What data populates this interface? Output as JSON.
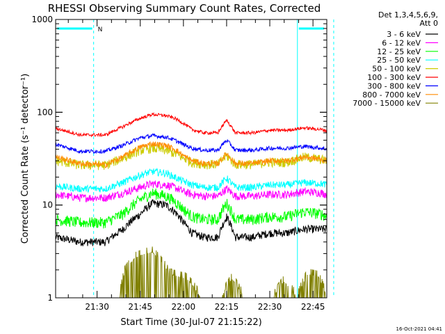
{
  "chart_data": {
    "type": "line",
    "title": "RHESSI Observing Summary Count Rates, Corrected",
    "xlabel": "Start Time (30-Jul-07 21:15:22)",
    "ylabel": "Corrected Count Rate (s⁻¹ detector⁻¹)",
    "yscale": "log",
    "ylim": [
      1,
      1000
    ],
    "xlim": [
      21.26,
      22.83
    ],
    "x_ticks": [
      {
        "label": "21:30",
        "value": 21.5
      },
      {
        "label": "21:45",
        "value": 21.75
      },
      {
        "label": "22:00",
        "value": 22.0
      },
      {
        "label": "22:15",
        "value": 22.25
      },
      {
        "label": "22:30",
        "value": 22.5
      },
      {
        "label": "22:45",
        "value": 22.75
      }
    ],
    "y_ticks": [
      {
        "label": "1",
        "value": 1
      },
      {
        "label": "10",
        "value": 10
      },
      {
        "label": "100",
        "value": 100
      },
      {
        "label": "1000",
        "value": 1000
      }
    ],
    "legend_header": [
      "Det 1,3,4,5,6,9,",
      "Att 0"
    ],
    "legend_position": "right",
    "night_marker": {
      "label": "N",
      "start": 21.26,
      "end": 21.48
    },
    "saa_markers": [
      {
        "start": 22.66,
        "end": 22.87
      }
    ],
    "dashed_lines": [
      21.48,
      22.87
    ],
    "solid_lines": [
      22.66
    ],
    "series": [
      {
        "name": "3 - 6 keV",
        "color": "#000000",
        "x": [
          21.26,
          21.4,
          21.55,
          21.65,
          21.75,
          21.82,
          21.9,
          21.95,
          22.0,
          22.05,
          22.12,
          22.2,
          22.25,
          22.3,
          22.4,
          22.5,
          22.6,
          22.7,
          22.8,
          22.83
        ],
        "values": [
          4.5,
          4.0,
          4.0,
          5.5,
          8.0,
          10.5,
          10.0,
          8.5,
          6.5,
          5.0,
          4.5,
          4.5,
          7.5,
          4.5,
          4.5,
          5.0,
          5.0,
          5.5,
          5.5,
          5.5
        ]
      },
      {
        "name": "6 - 12 keV",
        "color": "#ff00ff",
        "x": [
          21.26,
          21.4,
          21.55,
          21.65,
          21.75,
          21.82,
          21.9,
          21.95,
          22.0,
          22.05,
          22.12,
          22.2,
          22.25,
          22.3,
          22.4,
          22.5,
          22.6,
          22.7,
          22.8,
          22.83
        ],
        "values": [
          13.0,
          12.0,
          12.0,
          13.5,
          15.5,
          17.0,
          16.5,
          15.5,
          14.0,
          13.0,
          12.5,
          12.5,
          15.0,
          12.5,
          12.5,
          13.0,
          13.0,
          14.0,
          13.5,
          13.0
        ]
      },
      {
        "name": "12 - 25 keV",
        "color": "#00ff00",
        "x": [
          21.26,
          21.4,
          21.55,
          21.65,
          21.75,
          21.82,
          21.9,
          21.95,
          22.0,
          22.05,
          22.12,
          22.2,
          22.25,
          22.3,
          22.4,
          22.5,
          22.6,
          22.7,
          22.8,
          22.83
        ],
        "values": [
          7.0,
          6.5,
          6.5,
          8.0,
          11.5,
          13.5,
          12.5,
          11.0,
          9.0,
          7.5,
          7.0,
          7.0,
          10.5,
          7.0,
          7.0,
          7.5,
          7.5,
          8.5,
          8.0,
          7.5
        ]
      },
      {
        "name": "25 - 50 keV",
        "color": "#00ffff",
        "x": [
          21.26,
          21.4,
          21.55,
          21.65,
          21.75,
          21.82,
          21.9,
          21.95,
          22.0,
          22.05,
          22.12,
          22.2,
          22.25,
          22.3,
          22.4,
          22.5,
          22.6,
          22.7,
          22.8,
          22.83
        ],
        "values": [
          16.0,
          15.0,
          15.0,
          17.5,
          21.0,
          23.0,
          22.0,
          20.0,
          18.0,
          16.5,
          15.5,
          15.5,
          19.5,
          15.5,
          15.5,
          16.5,
          16.5,
          17.5,
          17.0,
          16.5
        ]
      },
      {
        "name": "50 - 100 keV",
        "color": "#cccc00",
        "x": [
          21.26,
          21.4,
          21.55,
          21.65,
          21.75,
          21.82,
          21.9,
          21.95,
          22.0,
          22.05,
          22.12,
          22.2,
          22.25,
          22.3,
          22.4,
          22.5,
          22.6,
          22.7,
          22.8,
          22.83
        ],
        "values": [
          30.0,
          27.0,
          27.0,
          32.0,
          39.0,
          41.0,
          39.0,
          36.0,
          32.0,
          29.0,
          27.5,
          27.5,
          34.0,
          27.5,
          27.5,
          29.0,
          29.0,
          33.0,
          31.0,
          30.0
        ]
      },
      {
        "name": "100 - 300 keV",
        "color": "#ff0000",
        "x": [
          21.26,
          21.4,
          21.55,
          21.65,
          21.75,
          21.82,
          21.9,
          21.95,
          22.0,
          22.05,
          22.12,
          22.2,
          22.25,
          22.3,
          22.4,
          22.5,
          22.6,
          22.7,
          22.8,
          22.83
        ],
        "values": [
          67.0,
          57.0,
          57.0,
          70.0,
          86.0,
          95.0,
          92.0,
          86.0,
          76.0,
          65.0,
          60.0,
          60.0,
          82.0,
          60.0,
          60.0,
          64.0,
          64.0,
          68.0,
          65.0,
          63.0
        ]
      },
      {
        "name": "300 - 800 keV",
        "color": "#0000ff",
        "x": [
          21.26,
          21.4,
          21.55,
          21.65,
          21.75,
          21.82,
          21.9,
          21.95,
          22.0,
          22.05,
          22.12,
          22.2,
          22.25,
          22.3,
          22.4,
          22.5,
          22.6,
          22.7,
          22.8,
          22.83
        ],
        "values": [
          45.0,
          38.0,
          38.0,
          44.0,
          53.0,
          56.0,
          54.0,
          50.0,
          45.0,
          41.0,
          39.0,
          39.0,
          50.0,
          39.0,
          39.0,
          41.0,
          41.0,
          43.0,
          41.0,
          40.0
        ]
      },
      {
        "name": "800 - 7000 keV",
        "color": "#ff8c00",
        "x": [
          21.26,
          21.4,
          21.55,
          21.65,
          21.75,
          21.82,
          21.9,
          21.95,
          22.0,
          22.05,
          22.12,
          22.2,
          22.25,
          22.3,
          22.4,
          22.5,
          22.6,
          22.7,
          22.8,
          22.83
        ],
        "values": [
          33.0,
          28.0,
          27.0,
          33.0,
          42.0,
          46.0,
          44.0,
          40.0,
          34.0,
          30.0,
          28.0,
          28.0,
          36.0,
          28.0,
          28.0,
          30.0,
          30.0,
          33.0,
          31.0,
          30.0
        ]
      },
      {
        "name": "7000 - 15000 keV",
        "color": "#808000",
        "x": [
          21.26,
          21.5,
          21.63,
          21.66,
          21.72,
          21.78,
          21.82,
          21.86,
          21.92,
          21.97,
          22.02,
          22.1,
          22.22,
          22.28,
          22.35,
          22.52,
          22.58,
          22.66,
          22.72,
          22.78,
          22.83
        ],
        "values": [
          1.0,
          1.0,
          1.0,
          1.9,
          2.7,
          3.0,
          3.1,
          2.6,
          1.8,
          1.7,
          1.6,
          1.0,
          1.0,
          1.6,
          1.0,
          1.0,
          1.5,
          1.0,
          1.8,
          1.7,
          1.0
        ]
      }
    ]
  },
  "footer": {
    "timestamp": "16-Oct-2021 04:41"
  }
}
